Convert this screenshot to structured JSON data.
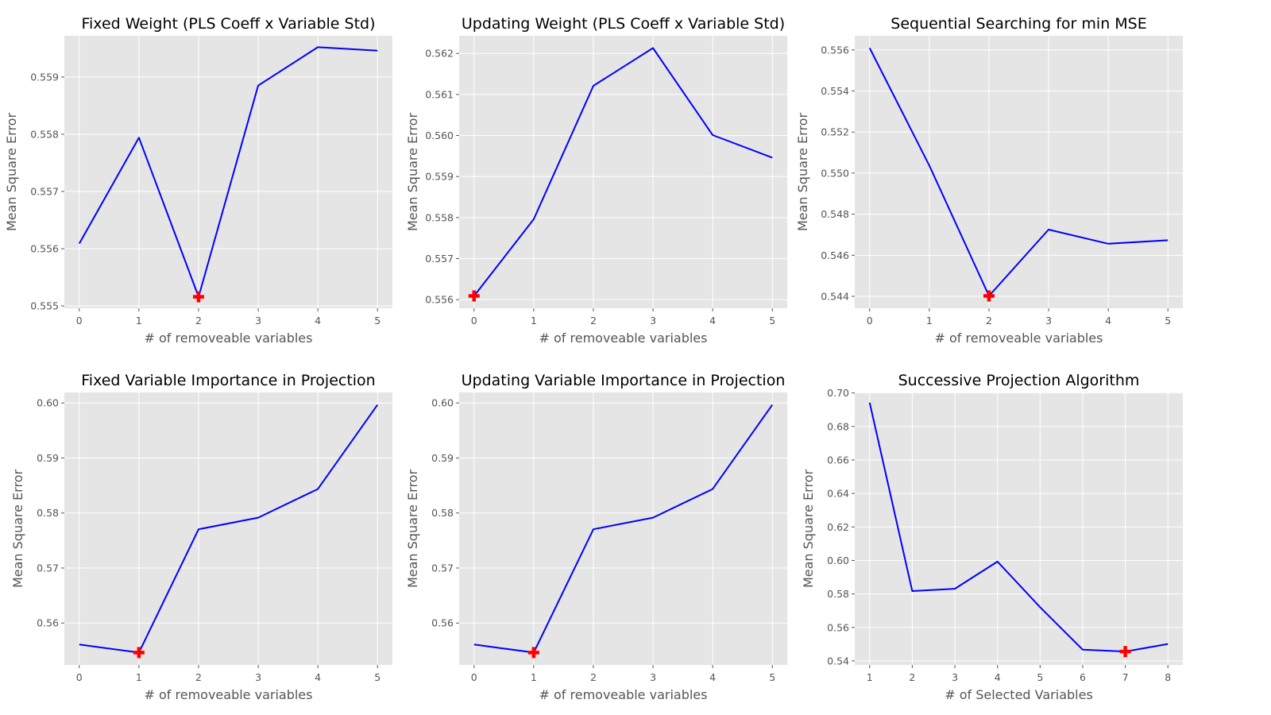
{
  "colors": {
    "panel": "#e5e5e5",
    "grid": "#ffffff",
    "line": "#0000ff",
    "marker": "#ff0000",
    "tick": "#555555"
  },
  "chart_data": [
    {
      "type": "line",
      "title": "Fixed Weight (PLS Coeff x Variable Std)",
      "xlabel": "# of removeable variables",
      "ylabel": "Mean Square Error",
      "x": [
        0,
        1,
        2,
        3,
        4,
        5
      ],
      "y": [
        0.55609,
        0.55794,
        0.55516,
        0.55885,
        0.55952,
        0.55946
      ],
      "xlim": [
        -0.25,
        5.25
      ],
      "ylim": [
        0.55496,
        0.55972
      ],
      "xticks": [
        0,
        1,
        2,
        3,
        4,
        5
      ],
      "yticks": [
        0.555,
        0.556,
        0.557,
        0.558,
        0.559
      ],
      "ytick_labels": [
        "0.555",
        "0.556",
        "0.557",
        "0.558",
        "0.559"
      ],
      "marker": {
        "x": 2,
        "y": 0.55516,
        "shape": "plus"
      },
      "grid": true
    },
    {
      "type": "line",
      "title": "Updating Weight (PLS Coeff x Variable Std)",
      "xlabel": "# of removeable variables",
      "ylabel": "Mean Square Error",
      "x": [
        0,
        1,
        2,
        3,
        4,
        5
      ],
      "y": [
        0.55609,
        0.55796,
        0.56121,
        0.56213,
        0.56001,
        0.55946
      ],
      "xlim": [
        -0.25,
        5.25
      ],
      "ylim": [
        0.55579,
        0.56243
      ],
      "xticks": [
        0,
        1,
        2,
        3,
        4,
        5
      ],
      "yticks": [
        0.556,
        0.557,
        0.558,
        0.559,
        0.56,
        0.561,
        0.562
      ],
      "ytick_labels": [
        "0.556",
        "0.557",
        "0.558",
        "0.559",
        "0.560",
        "0.561",
        "0.562"
      ],
      "marker": {
        "x": 0,
        "y": 0.55609,
        "shape": "plus"
      },
      "grid": true
    },
    {
      "type": "line",
      "title": "Sequential Searching for min MSE",
      "xlabel": "# of removeable variables",
      "ylabel": "Mean Square Error",
      "x": [
        0,
        1,
        2,
        3,
        4,
        5
      ],
      "y": [
        0.55609,
        0.55037,
        0.54402,
        0.54725,
        0.54656,
        0.54673
      ],
      "xlim": [
        -0.25,
        5.25
      ],
      "ylim": [
        0.54342,
        0.55669
      ],
      "xticks": [
        0,
        1,
        2,
        3,
        4,
        5
      ],
      "yticks": [
        0.544,
        0.546,
        0.548,
        0.55,
        0.552,
        0.554,
        0.556
      ],
      "ytick_labels": [
        "0.544",
        "0.546",
        "0.548",
        "0.550",
        "0.552",
        "0.554",
        "0.556"
      ],
      "marker": {
        "x": 2,
        "y": 0.54402,
        "shape": "plus"
      },
      "grid": true
    },
    {
      "type": "line",
      "title": "Fixed Variable Importance in Projection",
      "xlabel": "# of removeable variables",
      "ylabel": "Mean Square Error",
      "x": [
        0,
        1,
        2,
        3,
        4,
        5
      ],
      "y": [
        0.55609,
        0.55463,
        0.57704,
        0.57915,
        0.58435,
        0.59966
      ],
      "xlim": [
        -0.25,
        5.25
      ],
      "ylim": [
        0.55238,
        0.60191
      ],
      "xticks": [
        0,
        1,
        2,
        3,
        4,
        5
      ],
      "yticks": [
        0.56,
        0.57,
        0.58,
        0.59,
        0.6
      ],
      "ytick_labels": [
        "0.56",
        "0.57",
        "0.58",
        "0.59",
        "0.60"
      ],
      "marker": {
        "x": 1,
        "y": 0.55463,
        "shape": "plus"
      },
      "grid": true
    },
    {
      "type": "line",
      "title": "Updating Variable Importance in Projection",
      "xlabel": "# of removeable variables",
      "ylabel": "Mean Square Error",
      "x": [
        0,
        1,
        2,
        3,
        4,
        5
      ],
      "y": [
        0.55609,
        0.55463,
        0.57704,
        0.57915,
        0.58435,
        0.59966
      ],
      "xlim": [
        -0.25,
        5.25
      ],
      "ylim": [
        0.55238,
        0.60191
      ],
      "xticks": [
        0,
        1,
        2,
        3,
        4,
        5
      ],
      "yticks": [
        0.56,
        0.57,
        0.58,
        0.59,
        0.6
      ],
      "ytick_labels": [
        "0.56",
        "0.57",
        "0.58",
        "0.59",
        "0.60"
      ],
      "marker": {
        "x": 1,
        "y": 0.55463,
        "shape": "plus"
      },
      "grid": true
    },
    {
      "type": "line",
      "title": "Successive Projection Algorithm",
      "xlabel": "# of Selected Variables",
      "ylabel": "Mean Square Error",
      "x": [
        1,
        2,
        3,
        4,
        5,
        6,
        7,
        8
      ],
      "y": [
        0.6942,
        0.5817,
        0.5831,
        0.5993,
        0.5721,
        0.5467,
        0.5456,
        0.5501
      ],
      "xlim": [
        0.65,
        8.35
      ],
      "ylim": [
        0.5376,
        0.7003
      ],
      "xticks": [
        1,
        2,
        3,
        4,
        5,
        6,
        7,
        8
      ],
      "yticks": [
        0.54,
        0.56,
        0.58,
        0.6,
        0.62,
        0.64,
        0.66,
        0.68,
        0.7
      ],
      "ytick_labels": [
        "0.54",
        "0.56",
        "0.58",
        "0.60",
        "0.62",
        "0.64",
        "0.66",
        "0.68",
        "0.70"
      ],
      "marker": {
        "x": 7,
        "y": 0.5456,
        "shape": "plus"
      },
      "grid": true
    }
  ]
}
